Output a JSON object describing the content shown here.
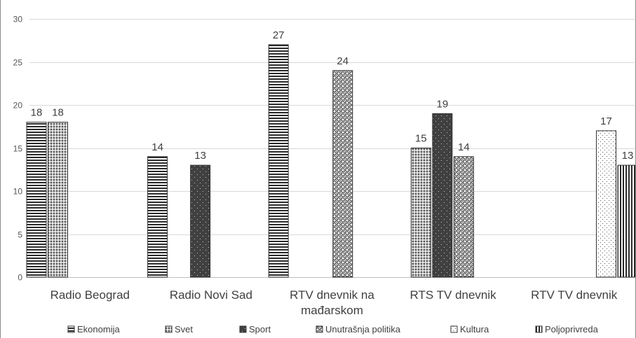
{
  "chart_data": {
    "type": "bar",
    "ylim": [
      0,
      30
    ],
    "yticks": [
      0,
      5,
      10,
      15,
      20,
      25,
      30
    ],
    "grid": true,
    "legend_position": "bottom",
    "categories": [
      "Radio Beograd",
      "Radio Novi Sad",
      "RTV dnevnik na mađarskom",
      "RTS TV dnevnik",
      "RTV TV dnevnik"
    ],
    "category_lines": [
      [
        "Radio Beograd"
      ],
      [
        "Radio Novi Sad"
      ],
      [
        "RTV dnevnik na",
        "mađarskom"
      ],
      [
        "RTS TV dnevnik"
      ],
      [
        "RTV TV dnevnik"
      ]
    ],
    "series": [
      {
        "name": "Ekonomija",
        "pattern": "hlines",
        "values": [
          18,
          14,
          27,
          null,
          null
        ]
      },
      {
        "name": "Svet",
        "pattern": "dense-dots",
        "values": [
          18,
          null,
          null,
          15,
          null
        ]
      },
      {
        "name": "Sport",
        "pattern": "dark-dots",
        "values": [
          null,
          13,
          null,
          19,
          null
        ]
      },
      {
        "name": "Unutrašnja politika",
        "pattern": "checker",
        "values": [
          null,
          null,
          24,
          14,
          null
        ]
      },
      {
        "name": "Kultura",
        "pattern": "light-dots",
        "values": [
          null,
          null,
          null,
          null,
          17
        ]
      },
      {
        "name": "Poljoprivreda",
        "pattern": "vlines",
        "values": [
          null,
          null,
          null,
          null,
          13
        ]
      }
    ]
  }
}
